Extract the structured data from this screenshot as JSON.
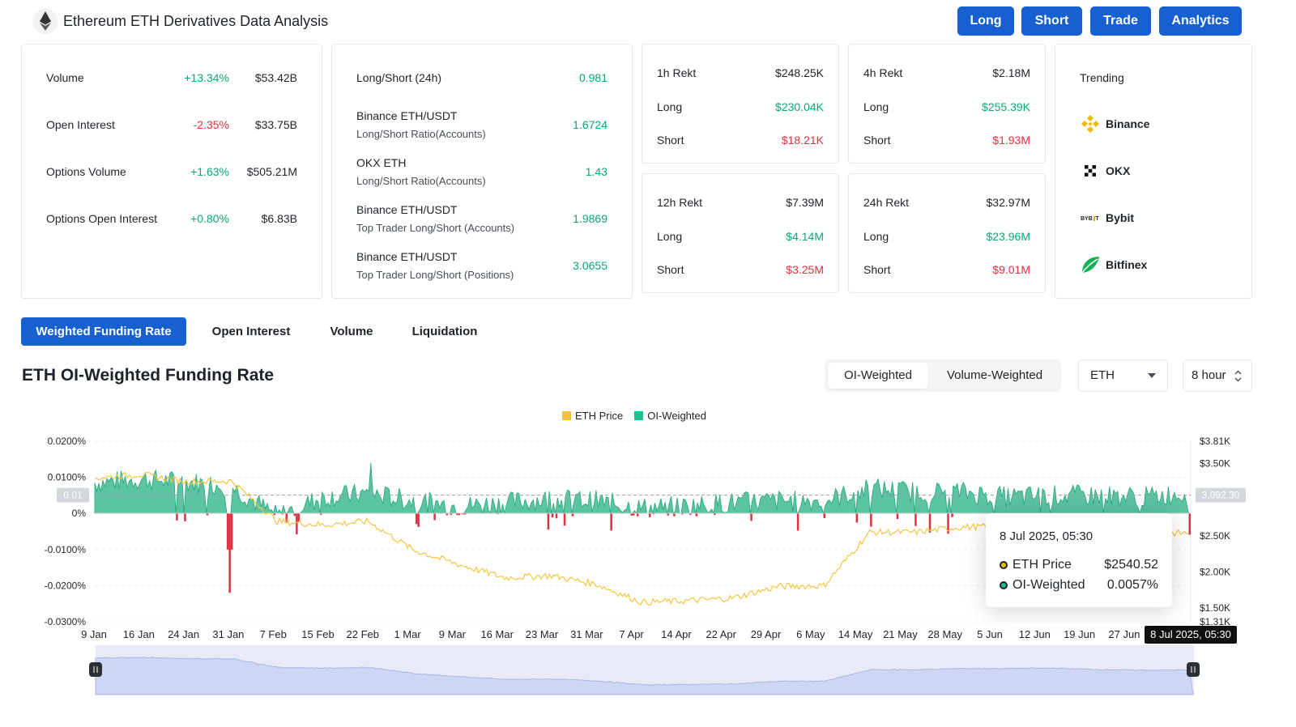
{
  "header": {
    "title": "Ethereum ETH Derivatives Data Analysis",
    "logo_icon": "ethereum-logo-icon",
    "buttons": [
      "Long",
      "Short",
      "Trade",
      "Analytics"
    ],
    "accent_color": "#1660d0"
  },
  "market": {
    "rows": [
      {
        "label": "Volume",
        "change": "+13.34%",
        "value": "$53.42B",
        "positive": true
      },
      {
        "label": "Open Interest",
        "change": "-2.35%",
        "value": "$33.75B",
        "positive": false
      },
      {
        "label": "Options Volume",
        "change": "+1.63%",
        "value": "$505.21M",
        "positive": true
      },
      {
        "label": "Options Open Interest",
        "change": "+0.80%",
        "value": "$6.83B",
        "positive": true
      }
    ]
  },
  "ratios": {
    "rows": [
      {
        "line1": "Long/Short (24h)",
        "line2": "",
        "value": "0.981"
      },
      {
        "line1": "Binance ETH/USDT",
        "line2": "Long/Short Ratio(Accounts)",
        "value": "1.6724"
      },
      {
        "line1": "OKX ETH",
        "line2": "Long/Short Ratio(Accounts)",
        "value": "1.43"
      },
      {
        "line1": "Binance ETH/USDT",
        "line2": "Top Trader Long/Short (Accounts)",
        "value": "1.9869"
      },
      {
        "line1": "Binance ETH/USDT",
        "line2": "Top Trader Long/Short (Positions)",
        "value": "3.0655"
      }
    ]
  },
  "rekt": [
    {
      "title": "1h Rekt",
      "total": "$248.25K",
      "long_label": "Long",
      "long": "$230.04K",
      "short_label": "Short",
      "short": "$18.21K"
    },
    {
      "title": "4h Rekt",
      "total": "$2.18M",
      "long_label": "Long",
      "long": "$255.39K",
      "short_label": "Short",
      "short": "$1.93M"
    },
    {
      "title": "12h Rekt",
      "total": "$7.39M",
      "long_label": "Long",
      "long": "$4.14M",
      "short_label": "Short",
      "short": "$3.25M"
    },
    {
      "title": "24h Rekt",
      "total": "$32.97M",
      "long_label": "Long",
      "long": "$23.96M",
      "short_label": "Short",
      "short": "$9.01M"
    }
  ],
  "trending": {
    "title": "Trending",
    "items": [
      {
        "name": "Binance",
        "icon": "binance-logo-icon"
      },
      {
        "name": "OKX",
        "icon": "okx-logo-icon"
      },
      {
        "name": "Bybit",
        "icon": "bybit-logo-icon"
      },
      {
        "name": "Bitfinex",
        "icon": "bitfinex-logo-icon"
      }
    ]
  },
  "tabs": [
    "Weighted Funding Rate",
    "Open Interest",
    "Volume",
    "Liquidation"
  ],
  "active_tab": "Weighted Funding Rate",
  "section_title": "ETH OI-Weighted Funding Rate",
  "weighting": {
    "options": [
      "OI-Weighted",
      "Volume-Weighted"
    ],
    "selected": "OI-Weighted"
  },
  "coin_select": {
    "value": "ETH"
  },
  "interval_select": {
    "value": "8 hour"
  },
  "chart_data": {
    "type": "area",
    "legend": [
      "ETH Price",
      "OI-Weighted"
    ],
    "series_colors": {
      "eth_price": "#f0b90b",
      "oi_positive": "#3ab58f",
      "oi_negative": "#e03140"
    },
    "y_left_ticks": [
      "0.0200%",
      "0.0100%",
      "0%",
      "-0.0100%",
      "-0.0200%",
      "-0.0300%"
    ],
    "y_left_range": [
      -0.03,
      0.02
    ],
    "y_right_ticks": [
      "$3.81K",
      "$3.50K",
      "$2.50K",
      "$2.00K",
      "$1.50K",
      "$1.31K"
    ],
    "y_right_range": [
      1310,
      3810
    ],
    "x_ticks": [
      "9 Jan",
      "16 Jan",
      "24 Jan",
      "31 Jan",
      "7 Feb",
      "15 Feb",
      "22 Feb",
      "1 Mar",
      "9 Mar",
      "16 Mar",
      "23 Mar",
      "31 Mar",
      "7 Apr",
      "14 Apr",
      "22 Apr",
      "29 Apr",
      "6 May",
      "14 May",
      "21 May",
      "28 May",
      "5 Jun",
      "12 Jun",
      "19 Jun",
      "27 Jun"
    ],
    "crosshair": {
      "left_label": "0.01",
      "right_label": "3,092.30",
      "x_label": "8 Jul 2025, 05:30"
    },
    "eth_price_weekly": [
      3300,
      3350,
      3250,
      3260,
      2700,
      2650,
      2700,
      2300,
      2100,
      1920,
      1950,
      1830,
      1580,
      1600,
      1640,
      1800,
      1810,
      2550,
      2550,
      2620,
      2630,
      2650,
      2560,
      2520,
      2540
    ],
    "oi_weighted_weekly": [
      0.0085,
      0.0095,
      0.0088,
      0.0075,
      -0.0008,
      0.0045,
      0.0055,
      0.0035,
      0.002,
      0.003,
      0.004,
      0.0035,
      0.0015,
      0.002,
      0.003,
      0.0035,
      0.0035,
      0.007,
      0.006,
      0.006,
      0.0045,
      0.005,
      0.005,
      0.0045,
      0.0057
    ]
  },
  "tooltip": {
    "title": "8 Jul 2025, 05:30",
    "rows": [
      {
        "label": "ETH Price",
        "value": "$2540.52"
      },
      {
        "label": "OI-Weighted",
        "value": "0.0057%"
      }
    ]
  }
}
